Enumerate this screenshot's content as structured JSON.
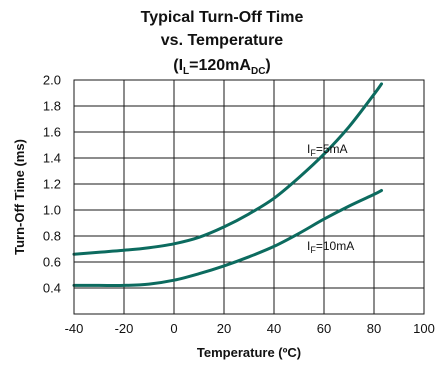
{
  "chart_data": {
    "type": "line",
    "title_line1": "Typical Turn-Off Time",
    "title_line2": "vs. Temperature",
    "title_line3_main": "(I",
    "title_line3_sub1": "L",
    "title_line3_mid": "=120mA",
    "title_line3_sub2": "DC",
    "title_line3_end": ")",
    "xlabel": "Temperature (ºC)",
    "ylabel": "Turn-Off Time (ms)",
    "xlim": [
      -40,
      100
    ],
    "ylim": [
      0.2,
      2.0
    ],
    "xticks": [
      "-40",
      "-20",
      "0",
      "20",
      "40",
      "60",
      "80",
      "100"
    ],
    "yticks": [
      "0.4",
      "0.6",
      "0.8",
      "1.0",
      "1.2",
      "1.4",
      "1.6",
      "1.8",
      "2.0"
    ],
    "grid": true,
    "line_color": "#0c6b5f",
    "series": [
      {
        "name_main": "I",
        "name_sub": "F",
        "name_rest": "=5mA",
        "x": [
          -40,
          -30,
          -20,
          -10,
          0,
          10,
          20,
          30,
          40,
          50,
          60,
          70,
          80,
          83
        ],
        "y": [
          0.66,
          0.675,
          0.69,
          0.71,
          0.74,
          0.79,
          0.87,
          0.97,
          1.09,
          1.25,
          1.43,
          1.64,
          1.89,
          1.97
        ]
      },
      {
        "name_main": "I",
        "name_sub": "F",
        "name_rest": "=10mA",
        "x": [
          -40,
          -30,
          -20,
          -10,
          0,
          10,
          20,
          30,
          40,
          50,
          60,
          70,
          80,
          83
        ],
        "y": [
          0.42,
          0.42,
          0.42,
          0.43,
          0.46,
          0.51,
          0.57,
          0.64,
          0.72,
          0.82,
          0.93,
          1.03,
          1.12,
          1.15
        ]
      }
    ]
  }
}
